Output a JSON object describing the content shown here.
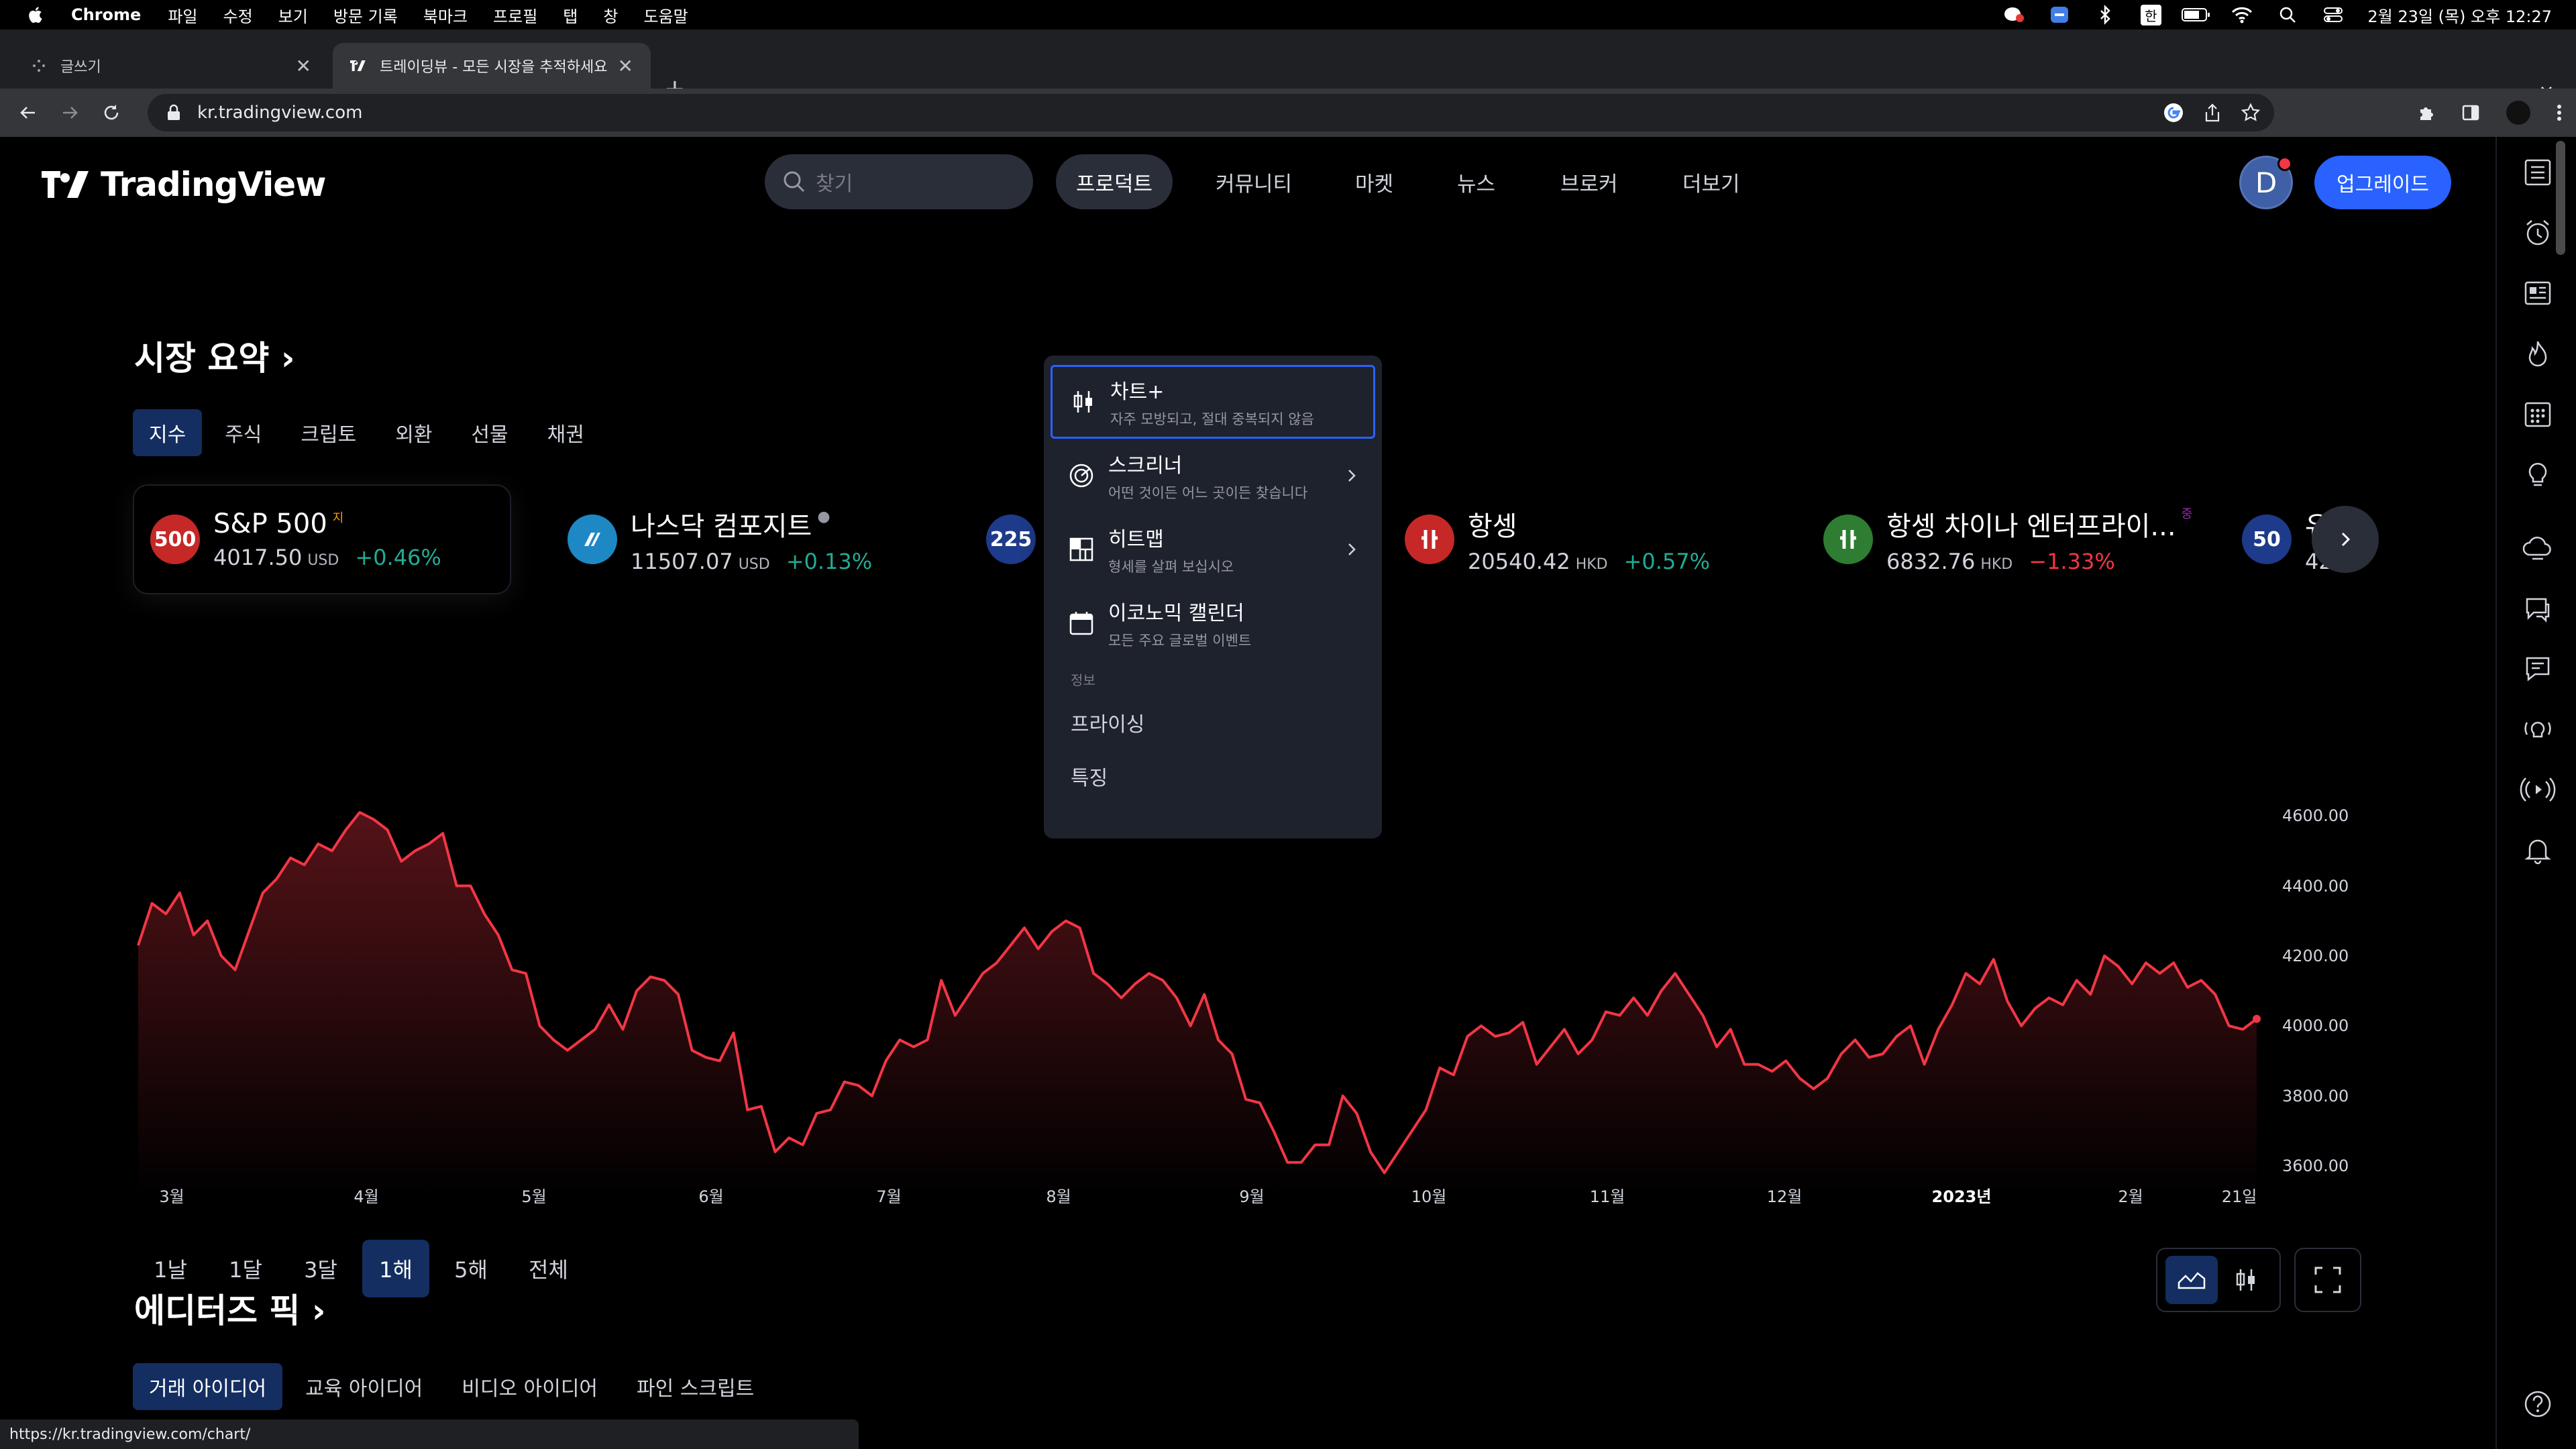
{
  "menubar": {
    "app": "Chrome",
    "items": [
      "파일",
      "수정",
      "보기",
      "방문 기록",
      "북마크",
      "프로필",
      "탭",
      "창",
      "도움말"
    ],
    "input_method": "한",
    "datetime": "2월 23일 (목) 오후 12:27"
  },
  "browser": {
    "tabs": [
      {
        "title": "글쓰기"
      },
      {
        "title": "트레이딩뷰 - 모든 시장을 추적하세요"
      }
    ],
    "url": "kr.tradingview.com",
    "status_url": "https://kr.tradingview.com/chart/"
  },
  "header": {
    "logo": "TradingView",
    "search_placeholder": "찾기",
    "nav": [
      "프로덕트",
      "커뮤니티",
      "마켓",
      "뉴스",
      "브로커",
      "더보기"
    ],
    "avatar_letter": "D",
    "upgrade": "업그레이드"
  },
  "dropdown": {
    "items": [
      {
        "title": "차트+",
        "subtitle": "자주 모방되고, 절대 중복되지 않음",
        "icon": "candlestick-icon"
      },
      {
        "title": "스크리너",
        "subtitle": "어떤 것이든 어느 곳이든 찾습니다",
        "icon": "radar-icon"
      },
      {
        "title": "히트맵",
        "subtitle": "형세를 살펴 보십시오",
        "icon": "heatmap-icon"
      },
      {
        "title": "이코노믹 캘린더",
        "subtitle": "모든 주요 글로벌 이벤트",
        "icon": "calendar-icon"
      }
    ],
    "section_label": "정보",
    "links": [
      "프라이싱",
      "특징"
    ]
  },
  "market_summary": {
    "title": "시장 요약",
    "tabs": [
      "지수",
      "주식",
      "크립토",
      "외환",
      "선물",
      "채권"
    ],
    "tickers": [
      {
        "badge": "500",
        "name": "S&P 500",
        "sup": "지",
        "price": "4017.50",
        "currency": "USD",
        "change": "+0.46%",
        "color": "#c62828"
      },
      {
        "badge": "",
        "name": "나스닥 컴포지트",
        "sup": "",
        "price": "11507.07",
        "currency": "USD",
        "change": "+0.13%",
        "color": "#1e88c5"
      },
      {
        "badge": "225",
        "name": "",
        "sup": "",
        "price": "",
        "currency": "",
        "change": "",
        "color": "#1e3a8a"
      },
      {
        "badge": "",
        "name": "항셍",
        "sup": "",
        "price": "20540.42",
        "currency": "HKD",
        "change": "+0.57%",
        "color": "#c62828"
      },
      {
        "badge": "",
        "name": "항셍 차이나 엔터프라이...",
        "sup": "중",
        "price": "6832.76",
        "currency": "HKD",
        "change": "−1.33%",
        "color": "#2e7d32"
      },
      {
        "badge": "50",
        "name": "유",
        "sup": "",
        "price": "42",
        "currency": "",
        "change": "",
        "color": "#1e3a8a"
      }
    ],
    "ranges": [
      "1날",
      "1달",
      "3달",
      "1해",
      "5해",
      "전체"
    ]
  },
  "chart_data": {
    "type": "area",
    "title": "",
    "xlabel": "",
    "ylabel": "",
    "ylim": [
      3550,
      4700
    ],
    "y_ticks": [
      "4600.00",
      "4400.00",
      "4200.00",
      "4000.00",
      "3800.00",
      "3600.00"
    ],
    "x_ticks": [
      "3월",
      "4월",
      "5월",
      "6월",
      "7월",
      "8월",
      "9월",
      "10월",
      "11월",
      "12월",
      "2023년",
      "2월",
      "21일"
    ],
    "color": "#f23645",
    "series": [
      {
        "values": [
          4230,
          4350,
          4320,
          4380,
          4260,
          4300,
          4200,
          4160,
          4270,
          4380,
          4420,
          4480,
          4460,
          4520,
          4500,
          4560,
          4610,
          4590,
          4560,
          4470,
          4500,
          4520,
          4550,
          4400,
          4400,
          4320,
          4260,
          4160,
          4150,
          4000,
          3960,
          3930,
          3960,
          3990,
          4060,
          3990,
          4100,
          4140,
          4130,
          4090,
          3930,
          3910,
          3900,
          3980,
          3760,
          3770,
          3640,
          3680,
          3660,
          3750,
          3760,
          3840,
          3830,
          3800,
          3900,
          3960,
          3940,
          3960,
          4130,
          4030,
          4090,
          4150,
          4180,
          4230,
          4280,
          4220,
          4270,
          4300,
          4280,
          4150,
          4120,
          4080,
          4120,
          4150,
          4130,
          4080,
          4000,
          4090,
          3960,
          3920,
          3790,
          3780,
          3700,
          3610,
          3610,
          3660,
          3660,
          3800,
          3750,
          3640,
          3580,
          3640,
          3700,
          3760,
          3880,
          3860,
          3970,
          4000,
          3970,
          3980,
          4010,
          3890,
          3940,
          3990,
          3920,
          3960,
          4040,
          4030,
          4080,
          4030,
          4100,
          4150,
          4090,
          4030,
          3940,
          3990,
          3890,
          3890,
          3870,
          3900,
          3850,
          3820,
          3850,
          3920,
          3960,
          3910,
          3920,
          3970,
          4000,
          3890,
          3990,
          4060,
          4150,
          4120,
          4190,
          4070,
          4000,
          4050,
          4080,
          4060,
          4130,
          4090,
          4200,
          4170,
          4120,
          4180,
          4150,
          4180,
          4110,
          4130,
          4090,
          4000,
          3990,
          4020
        ]
      }
    ]
  },
  "editors_pick": {
    "title": "에디터즈 픽",
    "tabs": [
      "거래 아이디어",
      "교육 아이디어",
      "비디오 아이디어",
      "파인 스크립트"
    ]
  }
}
